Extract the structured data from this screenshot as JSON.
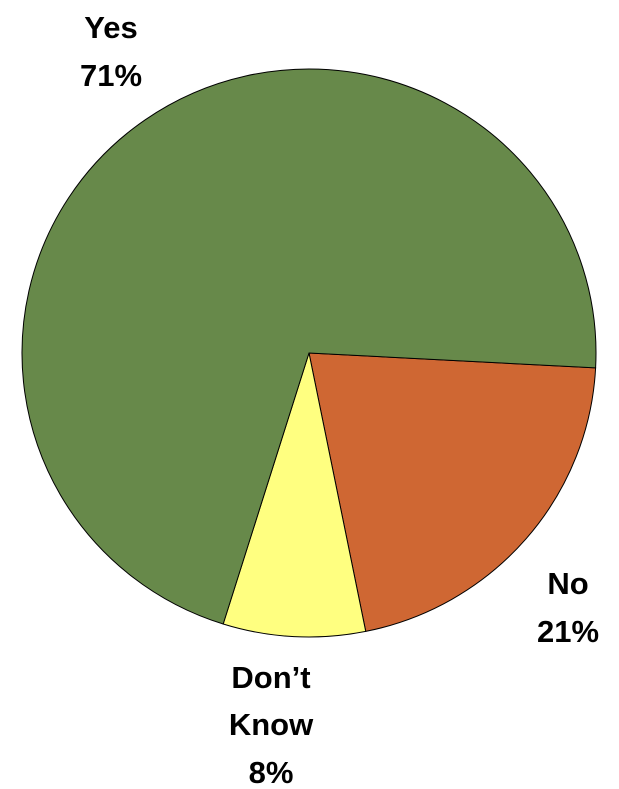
{
  "chart_data": {
    "type": "pie",
    "slices": [
      {
        "label_lines": [
          "Yes"
        ],
        "value": 71,
        "value_label": "71%",
        "color": "#67894a"
      },
      {
        "label_lines": [
          "No"
        ],
        "value": 21,
        "value_label": "21%",
        "color": "#cf6733"
      },
      {
        "label_lines": [
          "Don’t",
          "Know"
        ],
        "value": 8,
        "value_label": "8%",
        "color": "#ffff80"
      }
    ],
    "title": "",
    "legend": "none",
    "start_angle_deg": 0,
    "direction": "clockwise",
    "outline_color": "#000000"
  }
}
